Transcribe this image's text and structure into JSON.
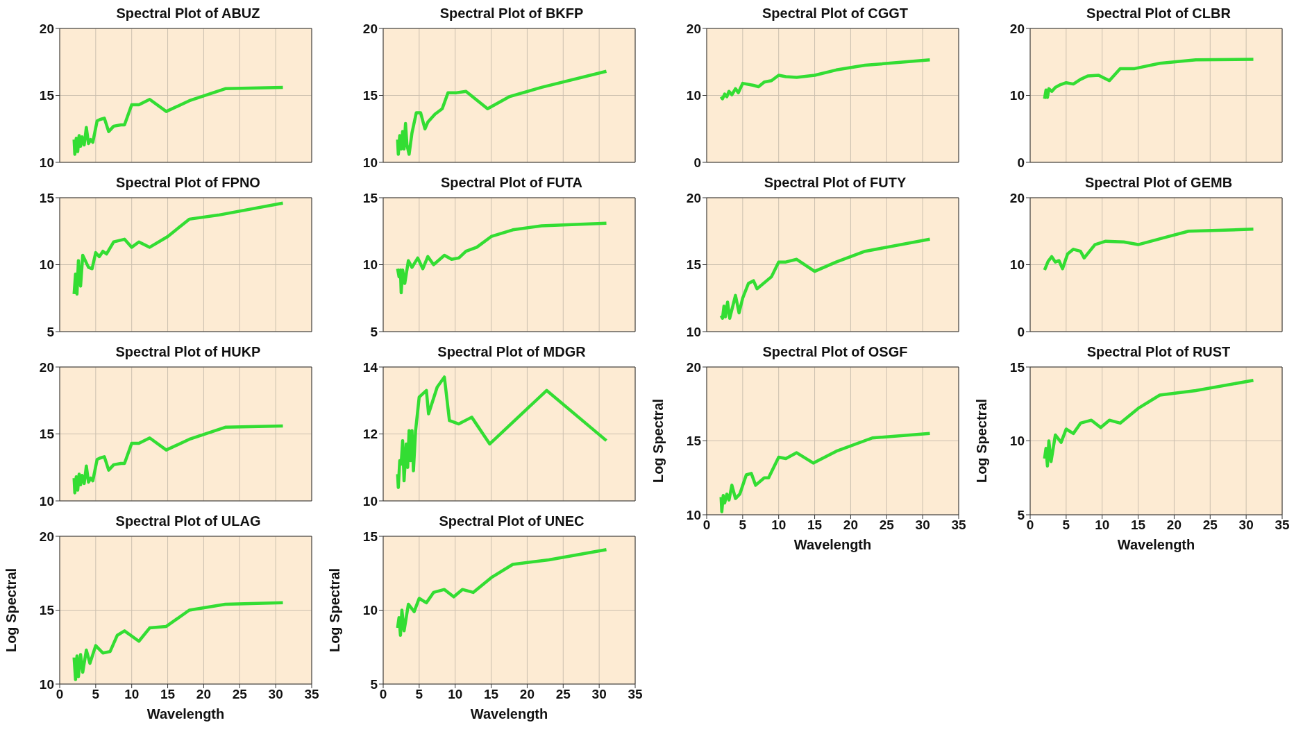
{
  "chart_data": [
    {
      "type": "line",
      "title": "Spectral Plot of ABUZ",
      "x": [
        2,
        2.1,
        2.3,
        2.5,
        2.7,
        2.9,
        3.1,
        3.4,
        3.7,
        4,
        4.3,
        4.6,
        5.2,
        5.6,
        6.2,
        6.8,
        7.5,
        8.5,
        9,
        10,
        11,
        12.5,
        14.8,
        18,
        23,
        31
      ],
      "values": [
        11.7,
        10.6,
        11.8,
        10.8,
        12.0,
        11.2,
        11.9,
        11.3,
        12.6,
        11.4,
        11.7,
        11.5,
        13.1,
        13.2,
        13.3,
        12.3,
        12.7,
        12.8,
        12.8,
        14.3,
        14.3,
        14.7,
        13.8,
        14.6,
        15.5,
        15.6
      ],
      "color": "#33dd33",
      "xlim": [
        0,
        35
      ],
      "xticks": [
        0,
        5,
        10,
        15,
        20,
        25,
        30,
        35
      ],
      "ylim": [
        10,
        20
      ],
      "yticks": [
        10,
        15,
        20
      ],
      "grid": true,
      "tick_labels": "y"
    },
    {
      "type": "line",
      "title": "Spectral Plot of BKFP",
      "x": [
        2,
        2.1,
        2.3,
        2.5,
        2.7,
        2.9,
        3.1,
        3.3,
        3.6,
        4,
        4.6,
        5.2,
        5.8,
        6.2,
        7.2,
        8.2,
        9,
        10.2,
        11.5,
        14.5,
        17.5,
        22,
        31
      ],
      "values": [
        11.7,
        10.6,
        12.0,
        11.0,
        12.3,
        11.0,
        12.9,
        11.3,
        10.6,
        12.2,
        13.7,
        13.7,
        12.5,
        13.0,
        13.6,
        14.0,
        15.2,
        15.2,
        15.3,
        14.0,
        14.9,
        15.6,
        16.8
      ],
      "color": "#33dd33",
      "xlim": [
        0,
        35
      ],
      "xticks": [
        0,
        5,
        10,
        15,
        20,
        25,
        30,
        35
      ],
      "ylim": [
        10,
        20
      ],
      "yticks": [
        10,
        15,
        20
      ],
      "grid": true,
      "tick_labels": "y"
    },
    {
      "type": "line",
      "title": "Spectral Plot of CGGT",
      "x": [
        2,
        2.2,
        2.5,
        2.8,
        3.1,
        3.5,
        4,
        4.4,
        5,
        6.5,
        7.2,
        8,
        9,
        10,
        11,
        12.5,
        15,
        18,
        22,
        31
      ],
      "values": [
        9.8,
        9.5,
        10.2,
        9.8,
        10.6,
        10.1,
        11.0,
        10.4,
        11.8,
        11.5,
        11.3,
        12.0,
        12.2,
        13.0,
        12.8,
        12.7,
        13.0,
        13.8,
        14.5,
        15.3
      ],
      "color": "#33dd33",
      "xlim": [
        0,
        35
      ],
      "xticks": [
        0,
        5,
        10,
        15,
        20,
        25,
        30,
        35
      ],
      "ylim": [
        0,
        20
      ],
      "yticks": [
        0,
        10,
        20
      ],
      "grid": true,
      "tick_labels": "y"
    },
    {
      "type": "line",
      "title": "Spectral Plot of CLBR",
      "x": [
        2,
        2.2,
        2.4,
        2.6,
        3,
        3.5,
        4.2,
        5,
        6,
        7,
        8,
        9.5,
        11,
        12.5,
        14.5,
        18,
        23,
        31
      ],
      "values": [
        9.5,
        10.8,
        9.7,
        11.0,
        10.6,
        11.2,
        11.6,
        11.9,
        11.7,
        12.4,
        12.9,
        13.0,
        12.2,
        14.0,
        14.0,
        14.8,
        15.3,
        15.4
      ],
      "color": "#33dd33",
      "xlim": [
        0,
        35
      ],
      "xticks": [
        0,
        5,
        10,
        15,
        20,
        25,
        30,
        35
      ],
      "ylim": [
        0,
        20
      ],
      "yticks": [
        0,
        10,
        20
      ],
      "grid": true,
      "tick_labels": "y"
    },
    {
      "type": "line",
      "title": "Spectral Plot of FPNO",
      "x": [
        2,
        2.2,
        2.4,
        2.6,
        2.9,
        3.2,
        4,
        4.5,
        5,
        5.5,
        6,
        6.5,
        7.5,
        9,
        10,
        11,
        12.5,
        15,
        18,
        22,
        31
      ],
      "values": [
        7.8,
        9.3,
        7.8,
        10.3,
        8.4,
        10.7,
        9.8,
        9.7,
        10.9,
        10.6,
        11.0,
        10.8,
        11.7,
        11.9,
        11.3,
        11.7,
        11.3,
        12.1,
        13.4,
        13.7,
        14.6
      ],
      "color": "#33dd33",
      "xlim": [
        0,
        35
      ],
      "xticks": [
        0,
        5,
        10,
        15,
        20,
        25,
        30,
        35
      ],
      "ylim": [
        5,
        15
      ],
      "yticks": [
        5,
        10,
        15
      ],
      "grid": true,
      "tick_labels": "y"
    },
    {
      "type": "line",
      "title": "Spectral Plot of FUTA",
      "x": [
        2,
        2.2,
        2.4,
        2.5,
        2.7,
        3,
        3.5,
        4,
        4.8,
        5.5,
        6.2,
        7,
        8.5,
        9.5,
        10.5,
        11.5,
        13,
        15,
        18,
        22,
        31
      ],
      "values": [
        9.7,
        9.1,
        9.6,
        7.9,
        9.6,
        8.6,
        10.3,
        9.8,
        10.5,
        9.7,
        10.6,
        10.0,
        10.7,
        10.4,
        10.5,
        11.0,
        11.3,
        12.1,
        12.6,
        12.9,
        13.1
      ],
      "color": "#33dd33",
      "xlim": [
        0,
        35
      ],
      "xticks": [
        0,
        5,
        10,
        15,
        20,
        25,
        30,
        35
      ],
      "ylim": [
        5,
        15
      ],
      "yticks": [
        5,
        10,
        15
      ],
      "grid": true,
      "tick_labels": "y"
    },
    {
      "type": "line",
      "title": "Spectral Plot of FUTY",
      "x": [
        2,
        2.2,
        2.4,
        2.6,
        2.9,
        3.2,
        4,
        4.5,
        5,
        5.8,
        6.5,
        7,
        9,
        10,
        11,
        12.5,
        15,
        18,
        22,
        31
      ],
      "values": [
        11.2,
        11.0,
        11.9,
        11.1,
        12.2,
        11.0,
        12.7,
        11.4,
        12.5,
        13.6,
        13.8,
        13.2,
        14.1,
        15.2,
        15.2,
        15.4,
        14.5,
        15.2,
        16.0,
        16.9
      ],
      "color": "#33dd33",
      "xlim": [
        0,
        35
      ],
      "xticks": [
        0,
        5,
        10,
        15,
        20,
        25,
        30,
        35
      ],
      "ylim": [
        10,
        20
      ],
      "yticks": [
        10,
        15,
        20
      ],
      "grid": true,
      "tick_labels": "y"
    },
    {
      "type": "line",
      "title": "Spectral Plot of GEMB",
      "x": [
        2,
        2.5,
        3,
        3.5,
        4,
        4.5,
        5.2,
        6,
        7,
        7.5,
        9,
        10.5,
        13,
        15,
        18.5,
        22,
        31
      ],
      "values": [
        9.2,
        10.5,
        11.2,
        10.4,
        10.6,
        9.4,
        11.6,
        12.3,
        12.0,
        11.0,
        13.0,
        13.5,
        13.4,
        13.0,
        14.0,
        15.0,
        15.3
      ],
      "color": "#33dd33",
      "xlim": [
        0,
        35
      ],
      "xticks": [
        0,
        5,
        10,
        15,
        20,
        25,
        30,
        35
      ],
      "ylim": [
        0,
        20
      ],
      "yticks": [
        0,
        10,
        20
      ],
      "grid": true,
      "tick_labels": "y"
    },
    {
      "type": "line",
      "title": "Spectral Plot of HUKP",
      "x": [
        2,
        2.1,
        2.3,
        2.5,
        2.7,
        2.9,
        3.1,
        3.4,
        3.7,
        4,
        4.3,
        4.6,
        5.2,
        5.6,
        6.2,
        6.8,
        7.5,
        8.5,
        9,
        10,
        11,
        12.5,
        14.8,
        18,
        23,
        31
      ],
      "values": [
        11.7,
        10.6,
        11.8,
        10.8,
        12.0,
        11.2,
        11.9,
        11.3,
        12.6,
        11.4,
        11.7,
        11.5,
        13.1,
        13.2,
        13.3,
        12.3,
        12.7,
        12.8,
        12.8,
        14.3,
        14.3,
        14.7,
        13.8,
        14.6,
        15.5,
        15.6
      ],
      "color": "#33dd33",
      "xlim": [
        0,
        35
      ],
      "xticks": [
        0,
        5,
        10,
        15,
        20,
        25,
        30,
        35
      ],
      "ylim": [
        10,
        20
      ],
      "yticks": [
        10,
        15,
        20
      ],
      "grid": true,
      "tick_labels": "y"
    },
    {
      "type": "line",
      "title": "Spectral Plot of MDGR",
      "x": [
        2,
        2.1,
        2.3,
        2.5,
        2.7,
        2.9,
        3.2,
        3.4,
        3.6,
        3.8,
        4,
        4.2,
        4.5,
        5,
        6,
        6.3,
        7.5,
        8.5,
        9.2,
        10.5,
        12.3,
        14.8,
        22.7,
        31
      ],
      "values": [
        10.8,
        10.4,
        11.2,
        11.1,
        11.8,
        10.6,
        11.7,
        11.0,
        12.1,
        11.2,
        12.1,
        10.9,
        12.1,
        13.1,
        13.3,
        12.6,
        13.4,
        13.7,
        12.4,
        12.3,
        12.5,
        11.7,
        13.3,
        11.8
      ],
      "color": "#33dd33",
      "xlim": [
        0,
        35
      ],
      "xticks": [
        0,
        5,
        10,
        15,
        20,
        25,
        30,
        35
      ],
      "ylim": [
        10,
        14
      ],
      "yticks": [
        10,
        12,
        14
      ],
      "grid": true,
      "tick_labels": "y"
    },
    {
      "type": "line",
      "title": "Spectral Plot of OSGF",
      "xlabel": "Wavelength",
      "ylabel": "Log Spectral",
      "x": [
        2,
        2.1,
        2.3,
        2.5,
        2.8,
        3.1,
        3.5,
        4,
        4.6,
        5.5,
        6.2,
        6.8,
        8,
        8.6,
        10,
        11,
        12.5,
        14.8,
        18,
        23,
        31
      ],
      "values": [
        11.2,
        10.2,
        11.3,
        10.8,
        11.4,
        11.0,
        12.0,
        11.1,
        11.4,
        12.7,
        12.8,
        12.0,
        12.5,
        12.5,
        13.9,
        13.8,
        14.2,
        13.5,
        14.3,
        15.2,
        15.5
      ],
      "color": "#33dd33",
      "xlim": [
        0,
        35
      ],
      "xticks": [
        0,
        5,
        10,
        15,
        20,
        25,
        30,
        35
      ],
      "ylim": [
        10,
        20
      ],
      "yticks": [
        10,
        15,
        20
      ],
      "grid": true
    },
    {
      "type": "line",
      "title": "Spectral Plot of RUST",
      "xlabel": "Wavelength",
      "ylabel": "Log Spectral",
      "x": [
        2,
        2.2,
        2.4,
        2.6,
        2.9,
        3.5,
        4.3,
        5,
        6,
        7,
        8.5,
        9.8,
        11,
        12.5,
        15,
        18,
        23,
        31
      ],
      "values": [
        8.8,
        9.5,
        8.3,
        10.0,
        8.6,
        10.4,
        9.9,
        10.8,
        10.5,
        11.2,
        11.4,
        10.9,
        11.4,
        11.2,
        12.2,
        13.1,
        13.4,
        14.1
      ],
      "color": "#33dd33",
      "xlim": [
        0,
        35
      ],
      "xticks": [
        0,
        5,
        10,
        15,
        20,
        25,
        30,
        35
      ],
      "ylim": [
        5,
        15
      ],
      "yticks": [
        5,
        10,
        15
      ],
      "grid": true
    },
    {
      "type": "line",
      "title": "Spectral Plot of ULAG",
      "xlabel": "Wavelength",
      "ylabel": "Log Spectral",
      "x": [
        2,
        2.2,
        2.4,
        2.6,
        2.9,
        3.2,
        3.7,
        4.2,
        5,
        6,
        7,
        8,
        9,
        11,
        12.5,
        14.8,
        18,
        23,
        31
      ],
      "values": [
        11.8,
        10.3,
        11.9,
        10.5,
        12.0,
        10.8,
        12.3,
        11.4,
        12.6,
        12.1,
        12.2,
        13.3,
        13.6,
        12.9,
        13.8,
        13.9,
        15.0,
        15.4,
        15.5
      ],
      "color": "#33dd33",
      "xlim": [
        0,
        35
      ],
      "xticks": [
        0,
        5,
        10,
        15,
        20,
        25,
        30,
        35
      ],
      "ylim": [
        10,
        20
      ],
      "yticks": [
        10,
        15,
        20
      ],
      "grid": true
    },
    {
      "type": "line",
      "title": "Spectral Plot of UNEC",
      "xlabel": "Wavelength",
      "ylabel": "Log Spectral",
      "x": [
        2,
        2.2,
        2.4,
        2.6,
        2.9,
        3.5,
        4.3,
        5,
        6,
        7,
        8.5,
        9.8,
        11,
        12.5,
        15,
        18,
        23,
        31
      ],
      "values": [
        8.8,
        9.5,
        8.3,
        10.0,
        8.6,
        10.4,
        9.9,
        10.8,
        10.5,
        11.2,
        11.4,
        10.9,
        11.4,
        11.2,
        12.2,
        13.1,
        13.4,
        14.1
      ],
      "color": "#33dd33",
      "xlim": [
        0,
        35
      ],
      "xticks": [
        0,
        5,
        10,
        15,
        20,
        25,
        30,
        35
      ],
      "ylim": [
        5,
        15
      ],
      "yticks": [
        5,
        10,
        15
      ],
      "grid": true
    }
  ]
}
